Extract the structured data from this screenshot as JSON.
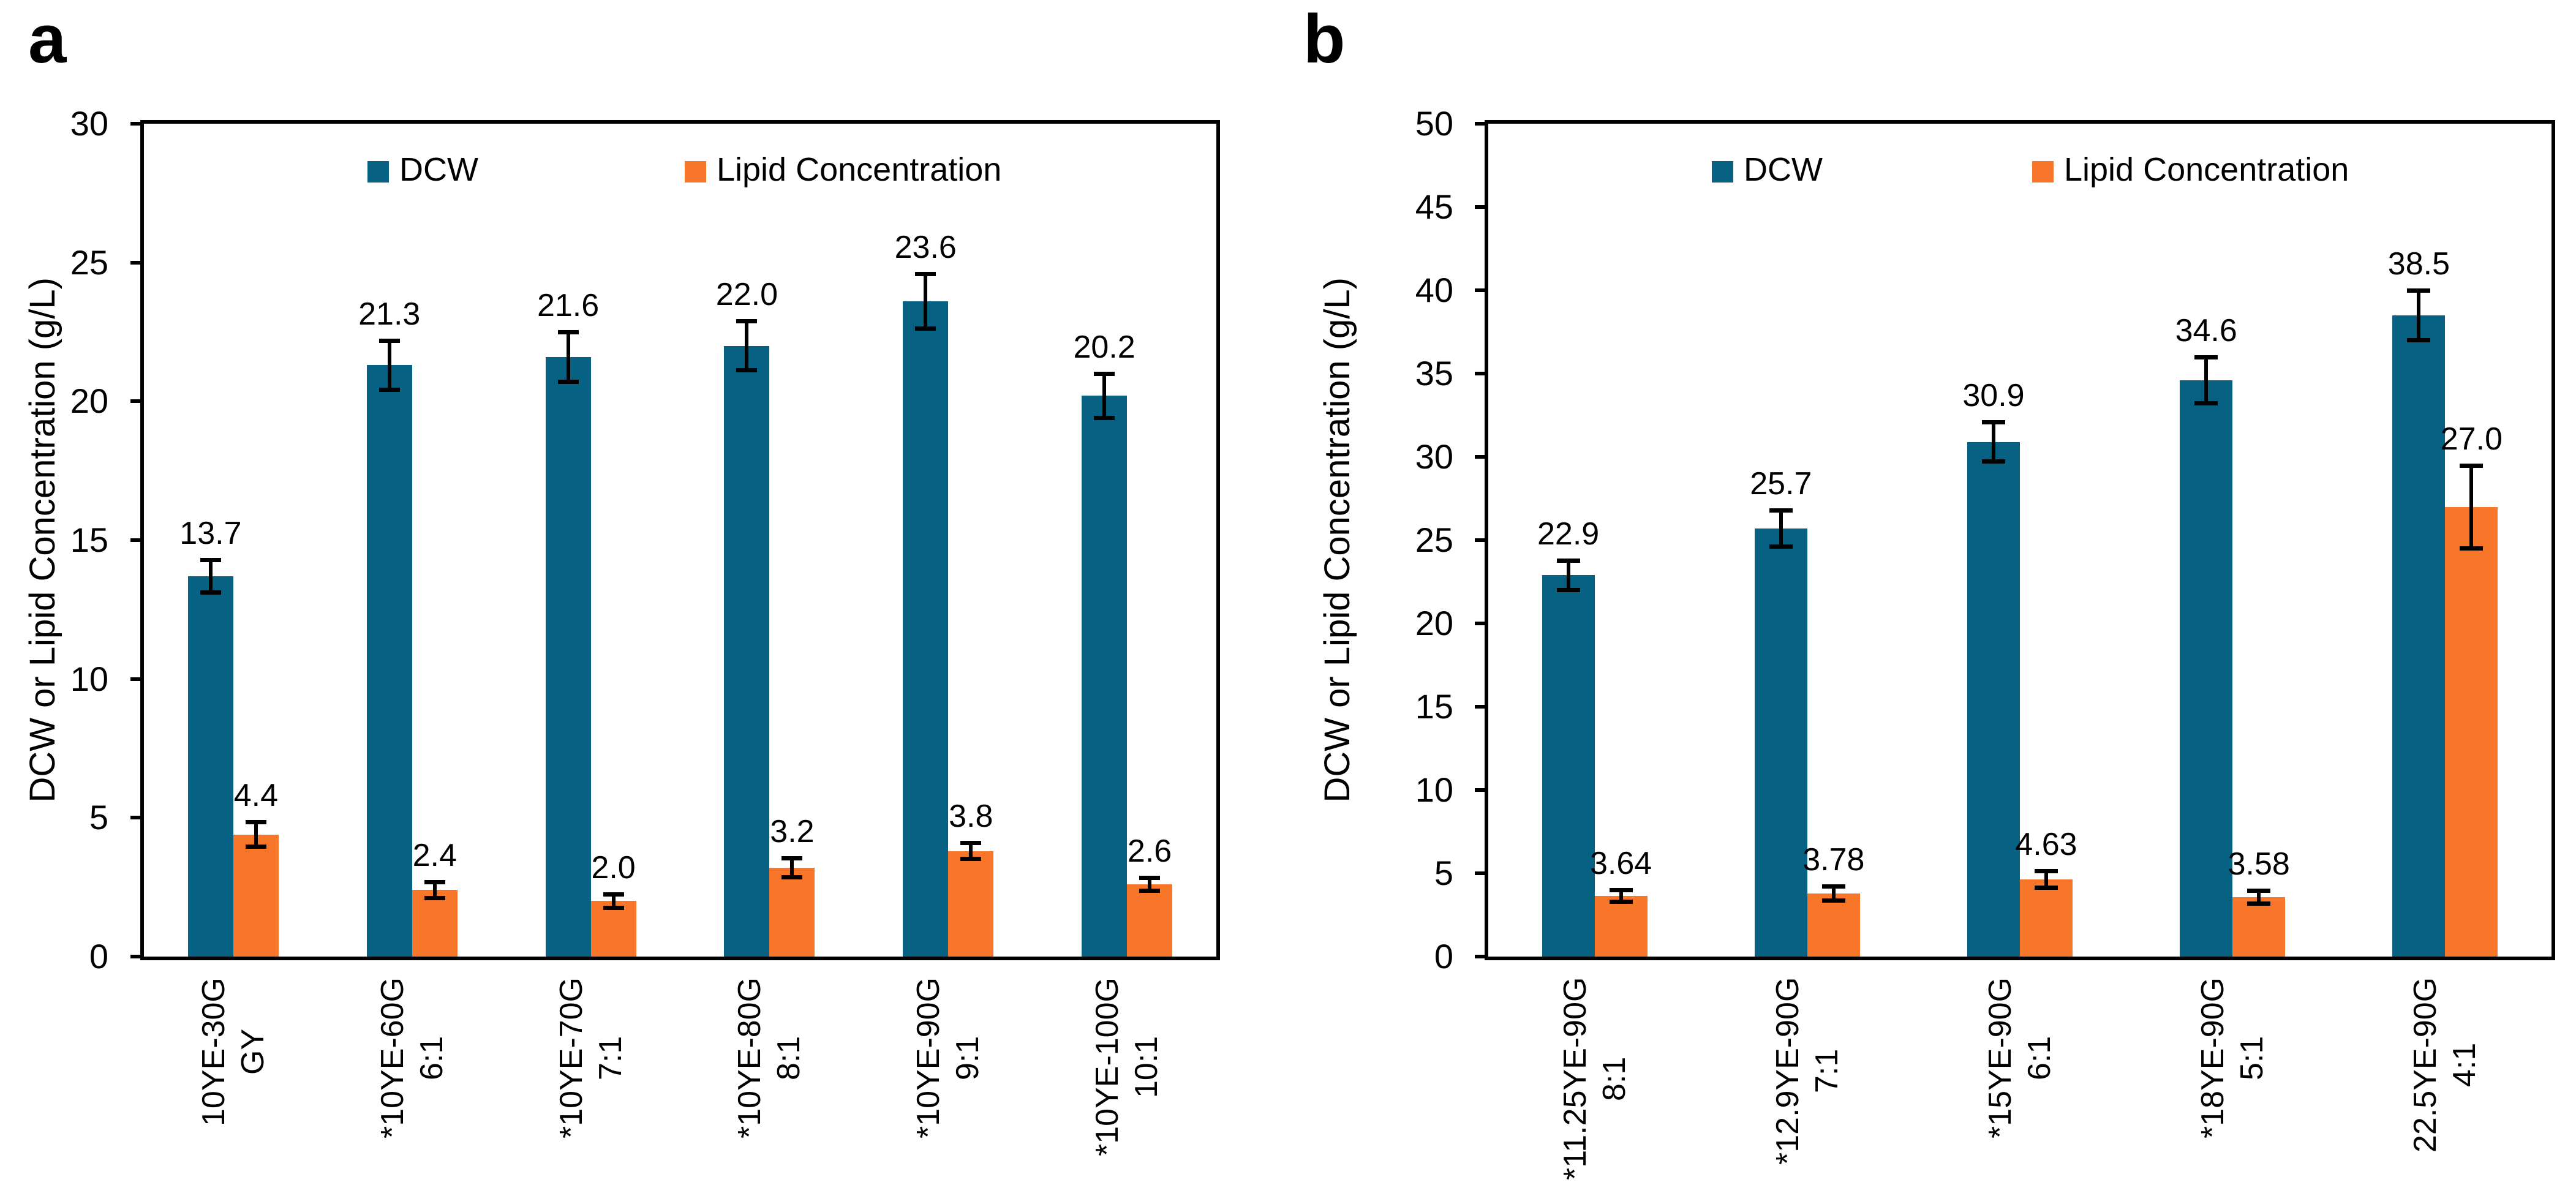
{
  "figure_title": "",
  "colors": {
    "dcw": "#066183",
    "lipid": "#F87629",
    "axis": "#000000",
    "text": "#000000",
    "background": "#FFFFFF"
  },
  "chart_data": [
    {
      "type": "bar",
      "letter": "a",
      "ylabel": "DCW or Lipid Concentration (g/L)",
      "xlabel": "",
      "ylim": [
        0,
        30
      ],
      "yticks": [
        0,
        5,
        10,
        15,
        20,
        25,
        30
      ],
      "grid": false,
      "legend_position": "inside-top",
      "legend": [
        "DCW",
        "Lipid Concentration"
      ],
      "categories": [
        [
          "10YE-30G",
          "GY"
        ],
        [
          "*10YE-60G",
          "6:1"
        ],
        [
          "*10YE-70G",
          "7:1"
        ],
        [
          "*10YE-80G",
          "8:1"
        ],
        [
          "*10YE-90G",
          "9:1"
        ],
        [
          "*10YE-100G",
          "10:1"
        ]
      ],
      "series": [
        {
          "name": "DCW",
          "values": [
            13.7,
            21.3,
            21.6,
            22.0,
            23.6,
            20.2
          ],
          "errors": [
            0.6,
            0.9,
            0.9,
            0.9,
            1.0,
            0.8
          ],
          "labels": [
            "13.7",
            "21.3",
            "21.6",
            "22.0",
            "23.6",
            "20.2"
          ]
        },
        {
          "name": "Lipid Concentration",
          "values": [
            4.4,
            2.4,
            2.0,
            3.2,
            3.8,
            2.6
          ],
          "errors": [
            0.45,
            0.3,
            0.25,
            0.35,
            0.3,
            0.25
          ],
          "labels": [
            "4.4",
            "2.4",
            "2.0",
            "3.2",
            "3.8",
            "2.6"
          ]
        }
      ]
    },
    {
      "type": "bar",
      "letter": "b",
      "ylabel": "DCW or Lipid Concentration (g/L)",
      "xlabel": "",
      "ylim": [
        0,
        50
      ],
      "yticks": [
        0,
        5,
        10,
        15,
        20,
        25,
        30,
        35,
        40,
        45,
        50
      ],
      "grid": false,
      "legend_position": "inside-top",
      "legend": [
        "DCW",
        "Lipid Concentration"
      ],
      "categories": [
        [
          "*11.25YE-90G",
          "8:1"
        ],
        [
          "*12.9YE-90G",
          "7:1"
        ],
        [
          "*15YE-90G",
          "6:1"
        ],
        [
          "*18YE-90G",
          "5:1"
        ],
        [
          "22.5YE-90G",
          "4:1"
        ]
      ],
      "series": [
        {
          "name": "DCW",
          "values": [
            22.9,
            25.7,
            30.9,
            34.6,
            38.5
          ],
          "errors": [
            0.9,
            1.1,
            1.2,
            1.4,
            1.5
          ],
          "labels": [
            "22.9",
            "25.7",
            "30.9",
            "34.6",
            "38.5"
          ]
        },
        {
          "name": "Lipid Concentration",
          "values": [
            3.64,
            3.78,
            4.63,
            3.58,
            27.0
          ],
          "errors": [
            0.35,
            0.45,
            0.5,
            0.4,
            2.5
          ],
          "labels": [
            "3.64",
            "3.78",
            "4.63",
            "3.58",
            "27.0"
          ]
        }
      ]
    }
  ]
}
